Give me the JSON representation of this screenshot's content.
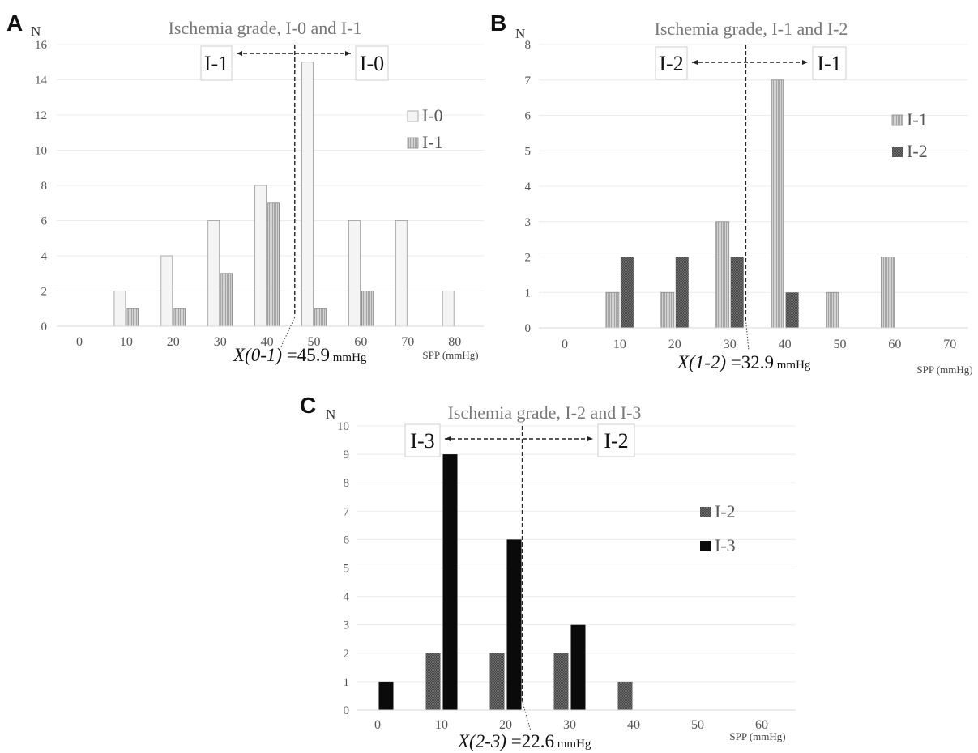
{
  "colors": {
    "I-0": "#f4f4f4",
    "I-1": "#c3c3c3",
    "I-2": "#5e5e5e",
    "I-3": "#0a0a0a",
    "title": "#777777",
    "axis": "#555555"
  },
  "chart_data": [
    {
      "panel": "A",
      "type": "bar",
      "title": "Ischemia grade, I-0 and I-1",
      "ylabel": "N",
      "xlabel": "SPP (mmHg)",
      "categories": [
        "0",
        "10",
        "20",
        "30",
        "40",
        "50",
        "60",
        "70",
        "80"
      ],
      "yticks": [
        0,
        2,
        4,
        6,
        8,
        10,
        12,
        14,
        16
      ],
      "ylim": [
        0,
        16
      ],
      "series": [
        {
          "name": "I-0",
          "values": [
            0,
            2,
            4,
            6,
            8,
            15,
            6,
            6,
            2
          ]
        },
        {
          "name": "I-1",
          "values": [
            0,
            1,
            1,
            3,
            7,
            1,
            2,
            0,
            0
          ]
        }
      ],
      "legend": [
        "I-0",
        "I-1"
      ],
      "legend_position": "right",
      "grid": true,
      "threshold": {
        "label_italic": "X(0-1)",
        "value_text": " =45.9",
        "unit": " mmHg",
        "value": 45.9,
        "left_label": "I-1",
        "right_label": "I-0"
      }
    },
    {
      "panel": "B",
      "type": "bar",
      "title": "Ischemia grade, I-1 and I-2",
      "ylabel": "N",
      "xlabel": "SPP (mmHg)",
      "categories": [
        "0",
        "10",
        "20",
        "30",
        "40",
        "50",
        "60",
        "70"
      ],
      "yticks": [
        0,
        1,
        2,
        3,
        4,
        5,
        6,
        7,
        8
      ],
      "ylim": [
        0,
        8
      ],
      "series": [
        {
          "name": "I-1",
          "values": [
            0,
            1,
            1,
            3,
            7,
            1,
            2,
            0
          ]
        },
        {
          "name": "I-2",
          "values": [
            0,
            2,
            2,
            2,
            1,
            0,
            0,
            0
          ]
        }
      ],
      "legend": [
        "I-1",
        "I-2"
      ],
      "legend_position": "right",
      "grid": true,
      "threshold": {
        "label_italic": "X(1-2)",
        "value_text": " =32.9",
        "unit": " mmHg",
        "value": 32.9,
        "left_label": "I-2",
        "right_label": "I-1"
      }
    },
    {
      "panel": "C",
      "type": "bar",
      "title": "Ischemia grade, I-2 and I-3",
      "ylabel": "N",
      "xlabel": "SPP (mmHg)",
      "categories": [
        "0",
        "10",
        "20",
        "30",
        "40",
        "50",
        "60"
      ],
      "yticks": [
        0,
        1,
        2,
        3,
        4,
        5,
        6,
        7,
        8,
        9,
        10
      ],
      "ylim": [
        0,
        10
      ],
      "series": [
        {
          "name": "I-2",
          "values": [
            0,
            2,
            2,
            2,
            1,
            0,
            0
          ]
        },
        {
          "name": "I-3",
          "values": [
            1,
            9,
            6,
            3,
            0,
            0,
            0
          ]
        }
      ],
      "legend": [
        "I-2",
        "I-3"
      ],
      "legend_position": "right",
      "grid": true,
      "threshold": {
        "label_italic": "X(2-3)",
        "value_text": " =22.6",
        "unit": " mmHg",
        "value": 22.6,
        "left_label": "I-3",
        "right_label": "I-2"
      }
    }
  ]
}
